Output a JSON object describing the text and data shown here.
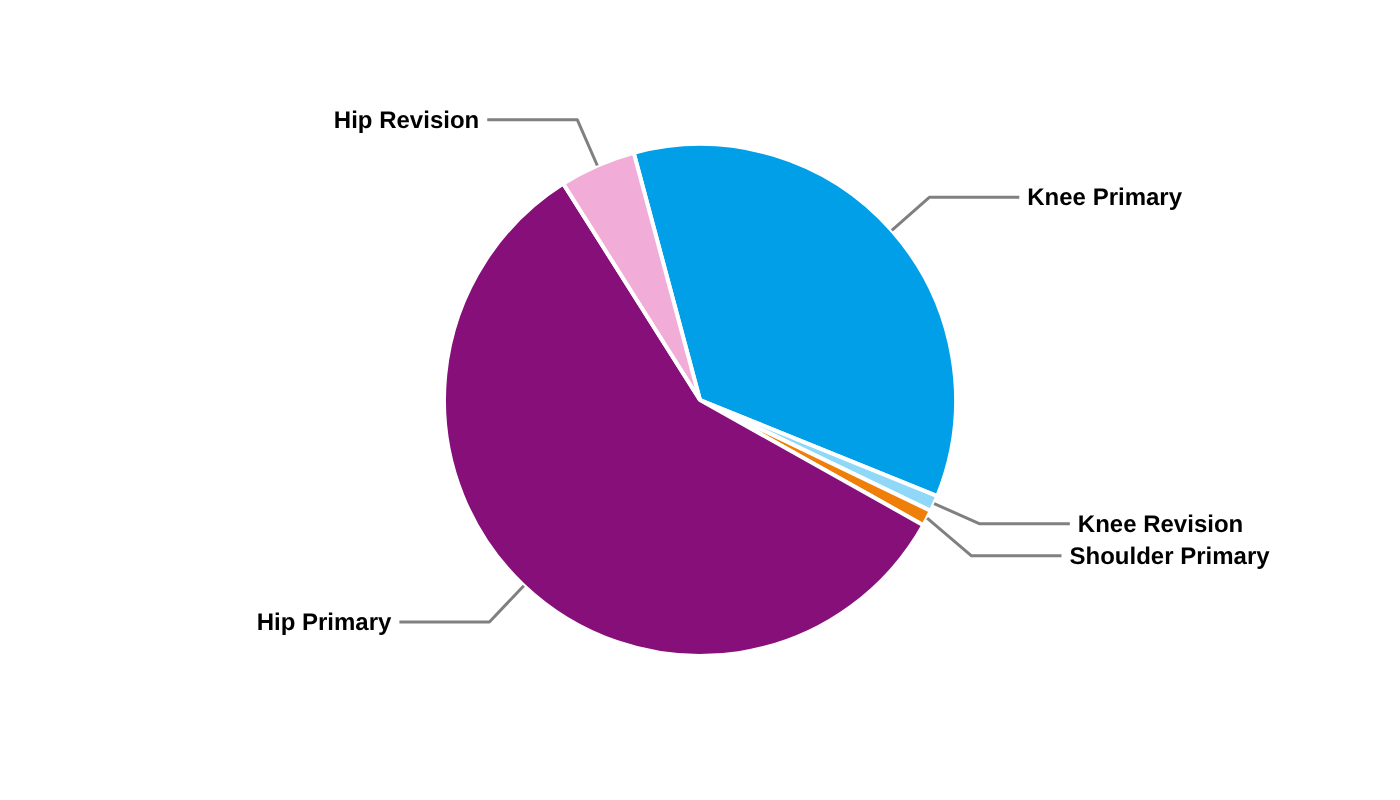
{
  "chart_data": {
    "type": "pie",
    "categories": [
      "Knee Primary",
      "Knee Revision",
      "Shoulder Primary",
      "Hip Primary",
      "Hip Revision"
    ],
    "values": [
      35.3,
      1,
      1,
      57.9,
      4.8
    ],
    "colors": [
      "#009fe8",
      "#8fd8f8",
      "#f07f09",
      "#860f7a",
      "#f2acd8"
    ]
  }
}
